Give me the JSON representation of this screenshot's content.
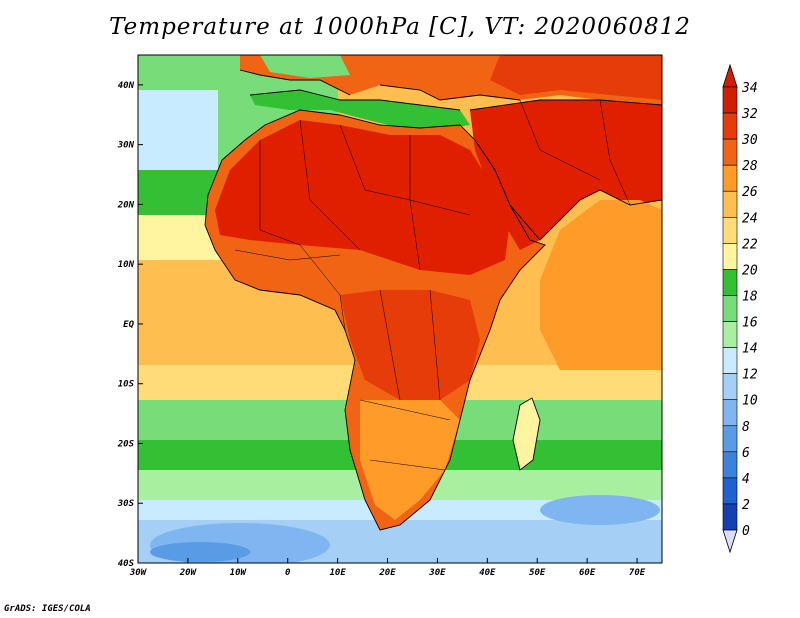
{
  "title": "Temperature at 1000hPa [C], VT: 2020060812",
  "credit": "GrADS: IGES/COLA",
  "map": {
    "variable": "Temperature at 1000hPa",
    "units": "C",
    "valid_time": "2020060812",
    "lon_range": [
      -30,
      75
    ],
    "lat_range": [
      -40,
      45
    ],
    "lon_ticks": [
      {
        "value": -30,
        "label": "30W"
      },
      {
        "value": -20,
        "label": "20W"
      },
      {
        "value": -10,
        "label": "10W"
      },
      {
        "value": 0,
        "label": "0"
      },
      {
        "value": 10,
        "label": "10E"
      },
      {
        "value": 20,
        "label": "20E"
      },
      {
        "value": 30,
        "label": "30E"
      },
      {
        "value": 40,
        "label": "40E"
      },
      {
        "value": 50,
        "label": "50E"
      },
      {
        "value": 60,
        "label": "60E"
      },
      {
        "value": 70,
        "label": "70E"
      }
    ],
    "lat_ticks": [
      {
        "value": 40,
        "label": "40N"
      },
      {
        "value": 30,
        "label": "30N"
      },
      {
        "value": 20,
        "label": "20N"
      },
      {
        "value": 10,
        "label": "10N"
      },
      {
        "value": 0,
        "label": "EQ"
      },
      {
        "value": -10,
        "label": "10S"
      },
      {
        "value": -20,
        "label": "20S"
      },
      {
        "value": -30,
        "label": "30S"
      },
      {
        "value": -40,
        "label": "40S"
      }
    ],
    "colorbar": {
      "levels": [
        0,
        2,
        4,
        6,
        8,
        10,
        12,
        14,
        16,
        18,
        20,
        22,
        24,
        26,
        28,
        30,
        32,
        34
      ],
      "labels": [
        "0",
        "2",
        "4",
        "6",
        "8",
        "10",
        "12",
        "14",
        "16",
        "18",
        "20",
        "22",
        "24",
        "26",
        "28",
        "30",
        "32",
        "34"
      ],
      "colors": [
        "#0a1a6e",
        "#1540b4",
        "#2060d0",
        "#3c82dc",
        "#5a9be6",
        "#7fb5f0",
        "#a5cff5",
        "#c8ebff",
        "#a8f0a0",
        "#78dc78",
        "#34c034",
        "#fff5a0",
        "#ffdc78",
        "#ffbe50",
        "#ff9b28",
        "#f06414",
        "#e63c0a",
        "#d21e00"
      ],
      "under_color": "#dcdcff",
      "over_color": "#d21e00"
    },
    "colors": {
      "hot_land": "#e01e00",
      "warm_land": "#f06414",
      "ocean_warm": "#ffbe50",
      "ocean_mild": "#fff5a0",
      "ocean_cool": "#34c034",
      "ocean_cold": "#a5cff5",
      "coastline": "#000000"
    }
  }
}
